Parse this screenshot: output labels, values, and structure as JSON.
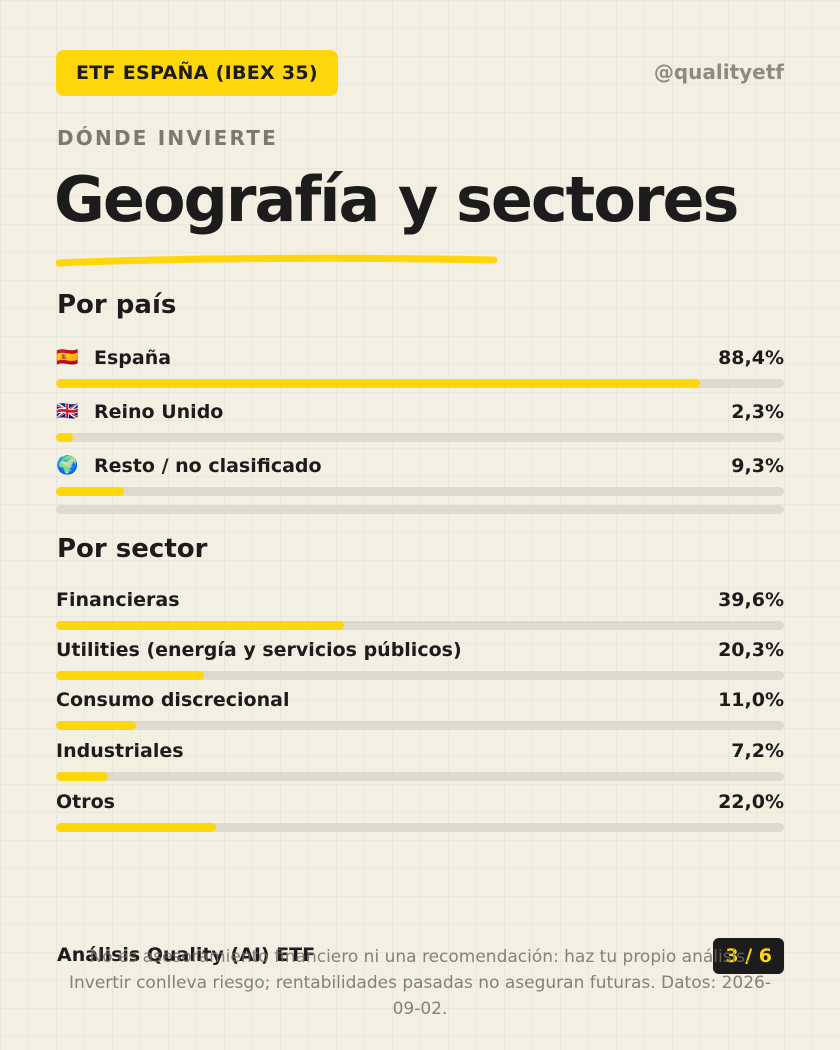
{
  "header": {
    "badge": "ETF ESPAÑA (IBEX 35)",
    "handle": "@qualityetf",
    "eyebrow": "DÓNDE INVIERTE",
    "title": "Geografía y sectores"
  },
  "colors": {
    "accent": "#ffd60a",
    "track": "#dfdace",
    "background": "#f3efe3",
    "text": "#1c1c1c"
  },
  "country": {
    "title": "Por país",
    "items": [
      {
        "icon": "spain-flag-icon",
        "glyph": "🇪🇸",
        "label": "España",
        "value": "88,4%",
        "pct": 88.4
      },
      {
        "icon": "uk-flag-icon",
        "glyph": "🇬🇧",
        "label": "Reino Unido",
        "value": "2,3%",
        "pct": 2.3
      },
      {
        "icon": "globe-icon",
        "glyph": "🌍",
        "label": "Resto / no clasificado",
        "value": "9,3%",
        "pct": 9.3
      }
    ]
  },
  "sector": {
    "title": "Por sector",
    "items": [
      {
        "label": "Financieras",
        "value": "39,6%",
        "pct": 39.6
      },
      {
        "label": "Utilities (energía y servicios públicos)",
        "value": "20,3%",
        "pct": 20.3
      },
      {
        "label": "Consumo discrecional",
        "value": "11,0%",
        "pct": 11.0
      },
      {
        "label": "Industriales",
        "value": "7,2%",
        "pct": 7.2
      },
      {
        "label": "Otros",
        "value": "22,0%",
        "pct": 22.0
      }
    ]
  },
  "footer": {
    "brand": "Análisis Quality (AI) ETF",
    "page": "3 / 6",
    "disclaimer": "No es asesoramiento financiero ni una recomendación: haz tu propio análisis. Invertir conlleva riesgo; rentabilidades pasadas no aseguran futuras. Datos: 2026-09-02."
  }
}
